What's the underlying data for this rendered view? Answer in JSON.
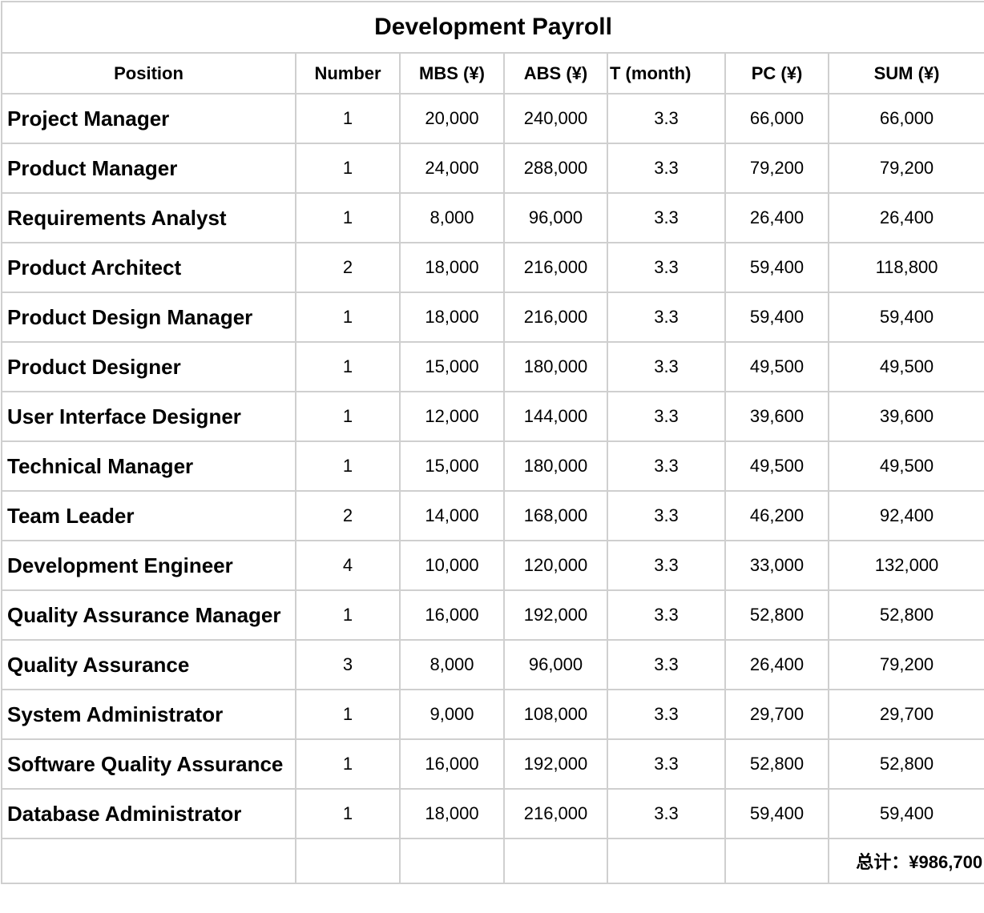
{
  "title": "Development Payroll",
  "columns": [
    "Position",
    "Number",
    "MBS (¥)",
    "ABS (¥)",
    "T (month)",
    "PC (¥)",
    "SUM (¥)"
  ],
  "rows": [
    {
      "position": "Project Manager",
      "number": "1",
      "mbs": "20,000",
      "abs": "240,000",
      "t": "3.3",
      "pc": "66,000",
      "sum": "66,000"
    },
    {
      "position": "Product Manager",
      "number": "1",
      "mbs": "24,000",
      "abs": "288,000",
      "t": "3.3",
      "pc": "79,200",
      "sum": "79,200"
    },
    {
      "position": "Requirements Analyst",
      "number": "1",
      "mbs": "8,000",
      "abs": "96,000",
      "t": "3.3",
      "pc": "26,400",
      "sum": "26,400"
    },
    {
      "position": "Product Architect",
      "number": "2",
      "mbs": "18,000",
      "abs": "216,000",
      "t": "3.3",
      "pc": "59,400",
      "sum": "118,800"
    },
    {
      "position": "Product Design Manager",
      "number": "1",
      "mbs": "18,000",
      "abs": "216,000",
      "t": "3.3",
      "pc": "59,400",
      "sum": "59,400"
    },
    {
      "position": "Product Designer",
      "number": "1",
      "mbs": "15,000",
      "abs": "180,000",
      "t": "3.3",
      "pc": "49,500",
      "sum": "49,500"
    },
    {
      "position": "User Interface Designer",
      "number": "1",
      "mbs": "12,000",
      "abs": "144,000",
      "t": "3.3",
      "pc": "39,600",
      "sum": "39,600"
    },
    {
      "position": "Technical Manager",
      "number": "1",
      "mbs": "15,000",
      "abs": "180,000",
      "t": "3.3",
      "pc": "49,500",
      "sum": "49,500"
    },
    {
      "position": "Team Leader",
      "number": "2",
      "mbs": "14,000",
      "abs": "168,000",
      "t": "3.3",
      "pc": "46,200",
      "sum": "92,400"
    },
    {
      "position": "Development Engineer",
      "number": "4",
      "mbs": "10,000",
      "abs": "120,000",
      "t": "3.3",
      "pc": "33,000",
      "sum": "132,000"
    },
    {
      "position": "Quality Assurance Manager",
      "number": "1",
      "mbs": "16,000",
      "abs": "192,000",
      "t": "3.3",
      "pc": "52,800",
      "sum": "52,800"
    },
    {
      "position": "Quality Assurance",
      "number": "3",
      "mbs": "8,000",
      "abs": "96,000",
      "t": "3.3",
      "pc": "26,400",
      "sum": "79,200"
    },
    {
      "position": "System Administrator",
      "number": "1",
      "mbs": "9,000",
      "abs": "108,000",
      "t": "3.3",
      "pc": "29,700",
      "sum": "29,700"
    },
    {
      "position": "Software Quality Assurance",
      "number": "1",
      "mbs": "16,000",
      "abs": "192,000",
      "t": "3.3",
      "pc": "52,800",
      "sum": "52,800"
    },
    {
      "position": "Database Administrator",
      "number": "1",
      "mbs": "18,000",
      "abs": "216,000",
      "t": "3.3",
      "pc": "59,400",
      "sum": "59,400"
    }
  ],
  "total": "总计：¥986,700",
  "colors": {
    "grid": "#cfcfcf",
    "text": "#000000",
    "background": "#ffffff"
  }
}
